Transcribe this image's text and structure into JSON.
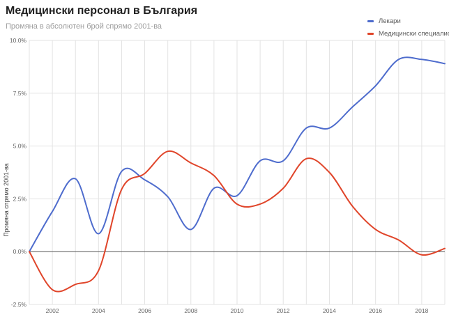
{
  "header": {
    "title": "Медицински персонал в България",
    "subtitle": "Промяна в абсолютен брой спрямо 2001-ва"
  },
  "colors": {
    "series1": "#4e6ccd",
    "series2": "#e0452a"
  },
  "chart_data": {
    "type": "line",
    "title": "Медицински персонал в България",
    "subtitle": "Промяна в абсолютен брой спрямо 2001-ва",
    "xlabel": "",
    "ylabel": "Промяна спрямо 2001-ва",
    "x": [
      2001,
      2002,
      2003,
      2004,
      2005,
      2006,
      2007,
      2008,
      2009,
      2010,
      2011,
      2012,
      2013,
      2014,
      2015,
      2016,
      2017,
      2018,
      2019
    ],
    "xlim": [
      2001,
      2019
    ],
    "x_ticks": [
      "2002",
      "2004",
      "2006",
      "2008",
      "2010",
      "2012",
      "2014",
      "2016",
      "2018"
    ],
    "ylim": [
      -2.5,
      10
    ],
    "y_ticks": [
      "-2.5%",
      "0.0%",
      "2.5%",
      "5.0%",
      "7.5%",
      "10.0%"
    ],
    "grid": true,
    "legend_position": "top-right",
    "series": [
      {
        "name": "Лекари",
        "color": "#4e6ccd",
        "values": [
          0.0,
          1.9,
          3.45,
          0.85,
          3.8,
          3.4,
          2.6,
          1.05,
          3.0,
          2.65,
          4.3,
          4.3,
          5.85,
          5.85,
          6.85,
          7.85,
          9.1,
          9.1,
          8.9
        ]
      },
      {
        "name": "Медицински специалисти",
        "color": "#e0452a",
        "values": [
          0.0,
          -1.8,
          -1.55,
          -0.9,
          2.95,
          3.7,
          4.75,
          4.2,
          3.6,
          2.25,
          2.25,
          3.0,
          4.4,
          3.75,
          2.15,
          1.05,
          0.55,
          -0.15,
          0.15
        ]
      }
    ]
  }
}
